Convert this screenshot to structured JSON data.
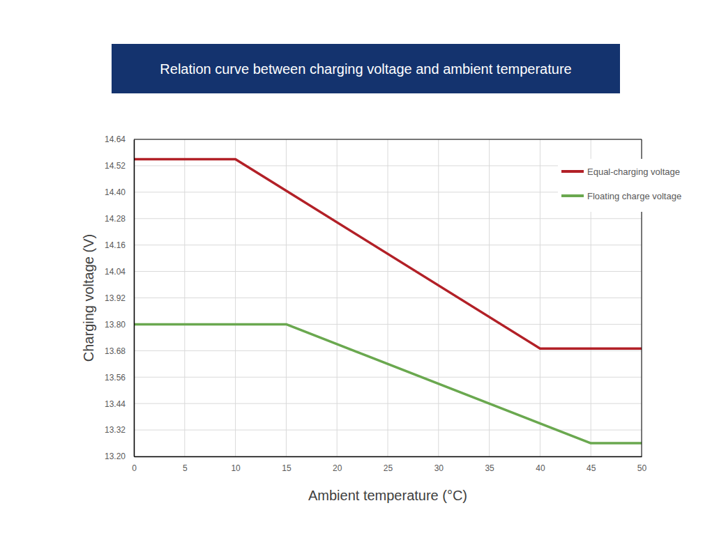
{
  "chart_data": {
    "type": "line",
    "title": "Relation curve between charging voltage and ambient temperature",
    "x_label": "Ambient temperature (°C)",
    "y_label": "Charging voltage (V)",
    "xlim": [
      0,
      50
    ],
    "xticks": [
      0,
      5,
      10,
      15,
      20,
      25,
      30,
      35,
      40,
      45,
      50
    ],
    "ylim": [
      13.2,
      14.64
    ],
    "yticks": [
      {
        "value": 13.2,
        "label": "13.20"
      },
      13.32,
      13.44,
      13.56,
      13.68,
      {
        "value": 13.8,
        "label": "13.80"
      },
      13.92,
      14.04,
      14.16,
      14.28,
      {
        "value": 14.4,
        "label": "14.40"
      },
      14.52,
      14.64
    ],
    "grid": true,
    "legend": "top-right",
    "series": [
      {
        "name": "Equal-charging voltage",
        "color": "#b22027",
        "x": [
          0,
          10,
          40,
          50
        ],
        "values": [
          14.55,
          14.55,
          13.69,
          13.69
        ]
      },
      {
        "name": "Floating charge voltage",
        "color": "#6aa84f",
        "x": [
          0,
          15,
          45,
          50
        ],
        "values": [
          13.8,
          13.8,
          13.26,
          13.26
        ]
      }
    ]
  }
}
